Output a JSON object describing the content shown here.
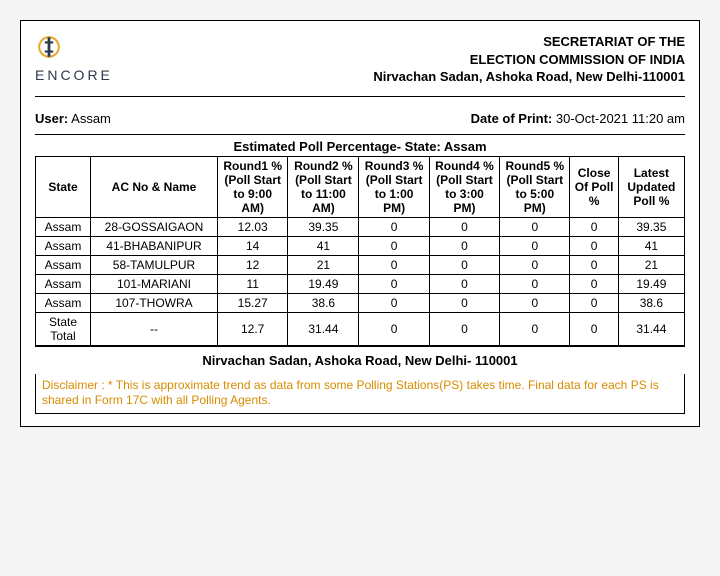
{
  "logo": {
    "text": "ENCORE",
    "accent_color": "#e8a836",
    "text_color": "#2a3a4a"
  },
  "org": {
    "line1": "SECRETARIAT OF THE",
    "line2": "ELECTION COMMISSION OF INDIA",
    "line3": "Nirvachan Sadan, Ashoka Road, New Delhi-110001"
  },
  "meta": {
    "user_label": "User:",
    "user_value": "Assam",
    "print_label": "Date of Print:",
    "print_value": "30-Oct-2021 11:20 am"
  },
  "table": {
    "title": "Estimated Poll Percentage- State: Assam",
    "columns": {
      "state": "State",
      "ac": "AC No & Name",
      "r1": "Round1 % (Poll Start to 9:00 AM)",
      "r2": "Round2 % (Poll Start to 11:00 AM)",
      "r3": "Round3 % (Poll Start to 1:00 PM)",
      "r4": "Round4 % (Poll Start to 3:00 PM)",
      "r5": "Round5 % (Poll Start to 5:00 PM)",
      "close": "Close Of Poll %",
      "latest": "Latest Updated Poll %"
    },
    "rows": [
      {
        "state": "Assam",
        "ac": "28-GOSSAIGAON",
        "r1": "12.03",
        "r2": "39.35",
        "r3": "0",
        "r4": "0",
        "r5": "0",
        "close": "0",
        "latest": "39.35"
      },
      {
        "state": "Assam",
        "ac": "41-BHABANIPUR",
        "r1": "14",
        "r2": "41",
        "r3": "0",
        "r4": "0",
        "r5": "0",
        "close": "0",
        "latest": "41"
      },
      {
        "state": "Assam",
        "ac": "58-TAMULPUR",
        "r1": "12",
        "r2": "21",
        "r3": "0",
        "r4": "0",
        "r5": "0",
        "close": "0",
        "latest": "21"
      },
      {
        "state": "Assam",
        "ac": "101-MARIANI",
        "r1": "11",
        "r2": "19.49",
        "r3": "0",
        "r4": "0",
        "r5": "0",
        "close": "0",
        "latest": "19.49"
      },
      {
        "state": "Assam",
        "ac": "107-THOWRA",
        "r1": "15.27",
        "r2": "38.6",
        "r3": "0",
        "r4": "0",
        "r5": "0",
        "close": "0",
        "latest": "38.6"
      }
    ],
    "total": {
      "state": "State Total",
      "ac": "--",
      "r1": "12.7",
      "r2": "31.44",
      "r3": "0",
      "r4": "0",
      "r5": "0",
      "close": "0",
      "latest": "31.44"
    }
  },
  "footer_address": "Nirvachan Sadan, Ashoka Road, New Delhi- 110001",
  "disclaimer": "Disclaimer : * This is approximate trend as data from some Polling Stations(PS) takes time. Final data for each PS is shared in Form 17C with all Polling Agents."
}
